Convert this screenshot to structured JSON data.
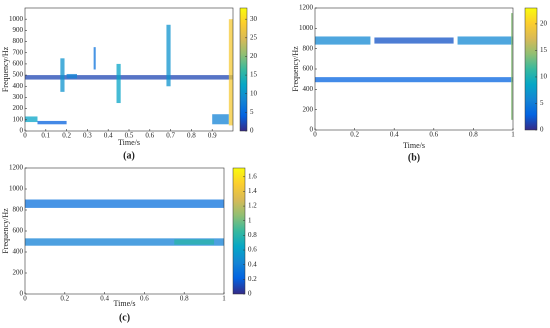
{
  "chart_data": [
    {
      "type": "heatmap",
      "label": "(a)",
      "xlabel": "Time/s",
      "ylabel": "Frequency/Hz",
      "xlim": [
        0,
        1
      ],
      "xticks": [
        0,
        0.1,
        0.2,
        0.3,
        0.4,
        0.5,
        0.6,
        0.7,
        0.8,
        0.9
      ],
      "ylim": [
        0,
        1100
      ],
      "yticks": [
        0,
        100,
        200,
        300,
        400,
        500,
        600,
        700,
        800,
        900,
        1000
      ],
      "clim": [
        0,
        33
      ],
      "cticks": [
        0,
        5,
        10,
        15,
        20,
        25,
        30
      ],
      "colormap": [
        "#352a87",
        "#0363e1",
        "#1485d4",
        "#06a7c6",
        "#38b99e",
        "#92bf73",
        "#d9ba56",
        "#fcce2e",
        "#f9fb0e"
      ],
      "ridges": [
        {
          "t": [
            0,
            0.06
          ],
          "f": [
            80,
            130
          ],
          "level": 12
        },
        {
          "t": [
            0.06,
            0.2
          ],
          "f": [
            60,
            90
          ],
          "level": 4
        },
        {
          "t": [
            0,
            1
          ],
          "f": [
            460,
            500
          ],
          "level": 2
        },
        {
          "t": [
            0.17,
            0.19
          ],
          "f": [
            350,
            650
          ],
          "level": 10
        },
        {
          "t": [
            0.2,
            0.25
          ],
          "f": [
            470,
            510
          ],
          "level": 8
        },
        {
          "t": [
            0.33,
            0.34
          ],
          "f": [
            550,
            750
          ],
          "level": 6
        },
        {
          "t": [
            0.44,
            0.46
          ],
          "f": [
            250,
            600
          ],
          "level": 12
        },
        {
          "t": [
            0.68,
            0.7
          ],
          "f": [
            400,
            950
          ],
          "level": 10
        },
        {
          "t": [
            0.9,
            0.98
          ],
          "f": [
            60,
            150
          ],
          "level": 8
        },
        {
          "t": [
            0.98,
            1
          ],
          "f": [
            50,
            1000
          ],
          "level": 28
        }
      ]
    },
    {
      "type": "heatmap",
      "label": "(b)",
      "xlabel": "Time/s",
      "ylabel": "Frequency/Hz",
      "xlim": [
        0,
        1
      ],
      "xticks": [
        0,
        0.2,
        0.4,
        0.6,
        0.8,
        1
      ],
      "ylim": [
        0,
        1200
      ],
      "yticks": [
        0,
        200,
        400,
        600,
        800,
        1000,
        1200
      ],
      "clim": [
        0,
        23
      ],
      "cticks": [
        0,
        5,
        10,
        15,
        20
      ],
      "colormap": [
        "#352a87",
        "#0363e1",
        "#1485d4",
        "#06a7c6",
        "#38b99e",
        "#92bf73",
        "#d9ba56",
        "#fcce2e",
        "#f9fb0e"
      ],
      "ridges": [
        {
          "t": [
            0,
            0.28
          ],
          "f": [
            840,
            920
          ],
          "level": 6
        },
        {
          "t": [
            0.3,
            0.7
          ],
          "f": [
            850,
            910
          ],
          "level": 2
        },
        {
          "t": [
            0.72,
            1
          ],
          "f": [
            840,
            920
          ],
          "level": 6
        },
        {
          "t": [
            0,
            1
          ],
          "f": [
            470,
            520
          ],
          "level": 3
        },
        {
          "t": [
            0.99,
            1
          ],
          "f": [
            100,
            1150
          ],
          "level": 14
        }
      ]
    },
    {
      "type": "heatmap",
      "label": "(c)",
      "xlabel": "Time/s",
      "ylabel": "Frequency/Hz",
      "xlim": [
        0,
        1
      ],
      "xticks": [
        0,
        0.2,
        0.4,
        0.6,
        0.8,
        1
      ],
      "ylim": [
        0,
        1200
      ],
      "yticks": [
        0,
        200,
        400,
        600,
        800,
        1000,
        1200
      ],
      "clim": [
        0,
        1.72
      ],
      "cticks": [
        0,
        0.2,
        0.4,
        0.6,
        0.8,
        1,
        1.2,
        1.4,
        1.6
      ],
      "colormap": [
        "#352a87",
        "#0363e1",
        "#1485d4",
        "#06a7c6",
        "#38b99e",
        "#92bf73",
        "#d9ba56",
        "#fcce2e",
        "#f9fb0e"
      ],
      "ridges": [
        {
          "t": [
            0,
            1
          ],
          "f": [
            820,
            900
          ],
          "level": 0.3
        },
        {
          "t": [
            0,
            1
          ],
          "f": [
            460,
            530
          ],
          "level": 0.4
        },
        {
          "t": [
            0.75,
            0.95
          ],
          "f": [
            470,
            520
          ],
          "level": 0.8
        }
      ]
    }
  ]
}
